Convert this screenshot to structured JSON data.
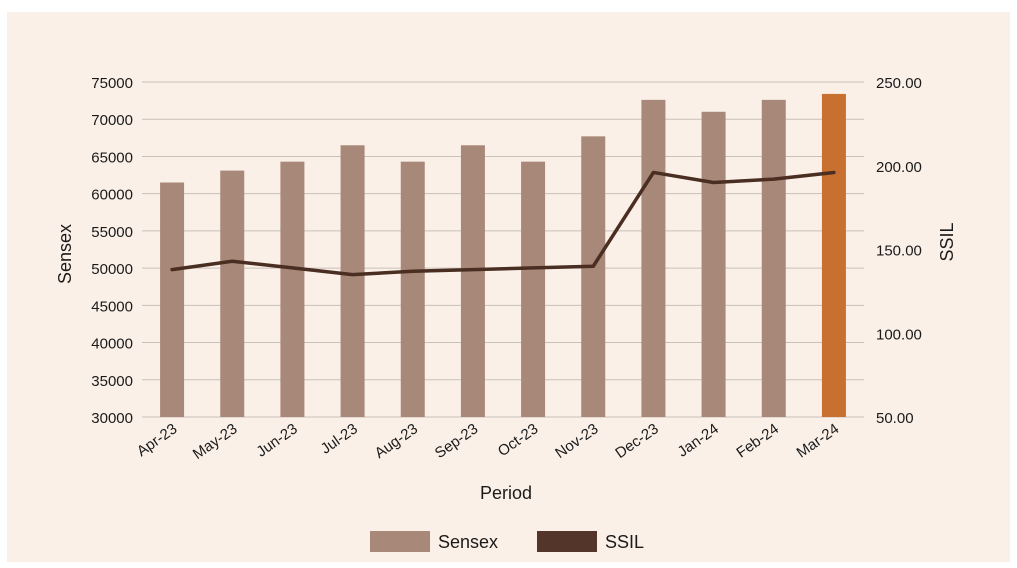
{
  "chart_data": {
    "type": "bar",
    "title": "",
    "xlabel": "Period",
    "ylabel": "Sensex",
    "y2label": "SSIL",
    "categories": [
      "Apr-23",
      "May-23",
      "Jun-23",
      "Jul-23",
      "Aug-23",
      "Sep-23",
      "Oct-23",
      "Nov-23",
      "Dec-23",
      "Jan-24",
      "Feb-24",
      "Mar-24"
    ],
    "ylim": [
      30000,
      75000
    ],
    "yticks": [
      "75000",
      "70000",
      "65000",
      "60000",
      "55000",
      "50000",
      "45000",
      "40000",
      "35000",
      "30000"
    ],
    "y2lim": [
      50,
      250
    ],
    "y2ticks": [
      "250.00",
      "200.00",
      "150.00",
      "100.00",
      "50.00"
    ],
    "grid": true,
    "legend_position": "bottom-center",
    "series": [
      {
        "name": "Sensex",
        "type": "bar",
        "axis": "left",
        "color": "#a88878",
        "highlight_color": "#c87030",
        "highlight_index": 11,
        "values": [
          61500,
          63100,
          64300,
          66500,
          64300,
          66500,
          64300,
          67700,
          72600,
          71000,
          72600,
          73400
        ]
      },
      {
        "name": "SSIL",
        "type": "line",
        "axis": "right",
        "color": "#4a2e22",
        "values": [
          138,
          143,
          139,
          135,
          137,
          138,
          139,
          140,
          196,
          190,
          192,
          196
        ]
      }
    ]
  }
}
